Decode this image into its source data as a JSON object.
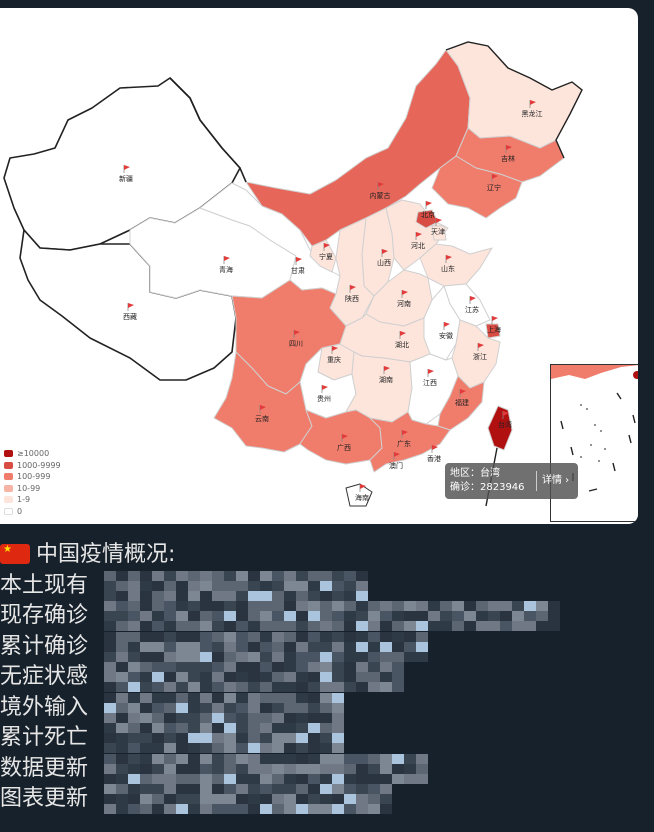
{
  "map": {
    "legend": [
      {
        "label": "≥10000",
        "color": "#b01010"
      },
      {
        "label": "1000-9999",
        "color": "#d94c43"
      },
      {
        "label": "100-999",
        "color": "#f07c6c"
      },
      {
        "label": "10-99",
        "color": "#f7b3a3"
      },
      {
        "label": "1-9",
        "color": "#fde5dc"
      },
      {
        "label": "0",
        "color": "#ffffff"
      }
    ],
    "tooltip": {
      "region_line": "地区：台湾",
      "confirmed_line": "确诊：2823946",
      "detail_button": "详情 ›"
    },
    "provinces": [
      {
        "name": "新疆"
      },
      {
        "name": "西藏"
      },
      {
        "name": "青海"
      },
      {
        "name": "甘肃"
      },
      {
        "name": "宁夏"
      },
      {
        "name": "内蒙古"
      },
      {
        "name": "黑龙江"
      },
      {
        "name": "吉林"
      },
      {
        "name": "辽宁"
      },
      {
        "name": "北京"
      },
      {
        "name": "天津"
      },
      {
        "name": "河北"
      },
      {
        "name": "山西"
      },
      {
        "name": "山东"
      },
      {
        "name": "陕西"
      },
      {
        "name": "河南"
      },
      {
        "name": "江苏"
      },
      {
        "name": "上海"
      },
      {
        "name": "安徽"
      },
      {
        "name": "四川"
      },
      {
        "name": "重庆"
      },
      {
        "name": "湖北"
      },
      {
        "name": "浙江"
      },
      {
        "name": "贵州"
      },
      {
        "name": "湖南"
      },
      {
        "name": "江西"
      },
      {
        "name": "福建"
      },
      {
        "name": "台湾"
      },
      {
        "name": "云南"
      },
      {
        "name": "广西"
      },
      {
        "name": "广东"
      },
      {
        "name": "澳门"
      },
      {
        "name": "香港"
      },
      {
        "name": "海南"
      }
    ]
  },
  "summary": {
    "heading": "中国疫情概况:",
    "rows": [
      {
        "label": "本土现有"
      },
      {
        "label": "现存确诊"
      },
      {
        "label": "累计确诊"
      },
      {
        "label": "无症状感"
      },
      {
        "label": "境外输入"
      },
      {
        "label": "累计死亡"
      },
      {
        "label": "数据更新"
      },
      {
        "label": "图表更新"
      }
    ]
  }
}
